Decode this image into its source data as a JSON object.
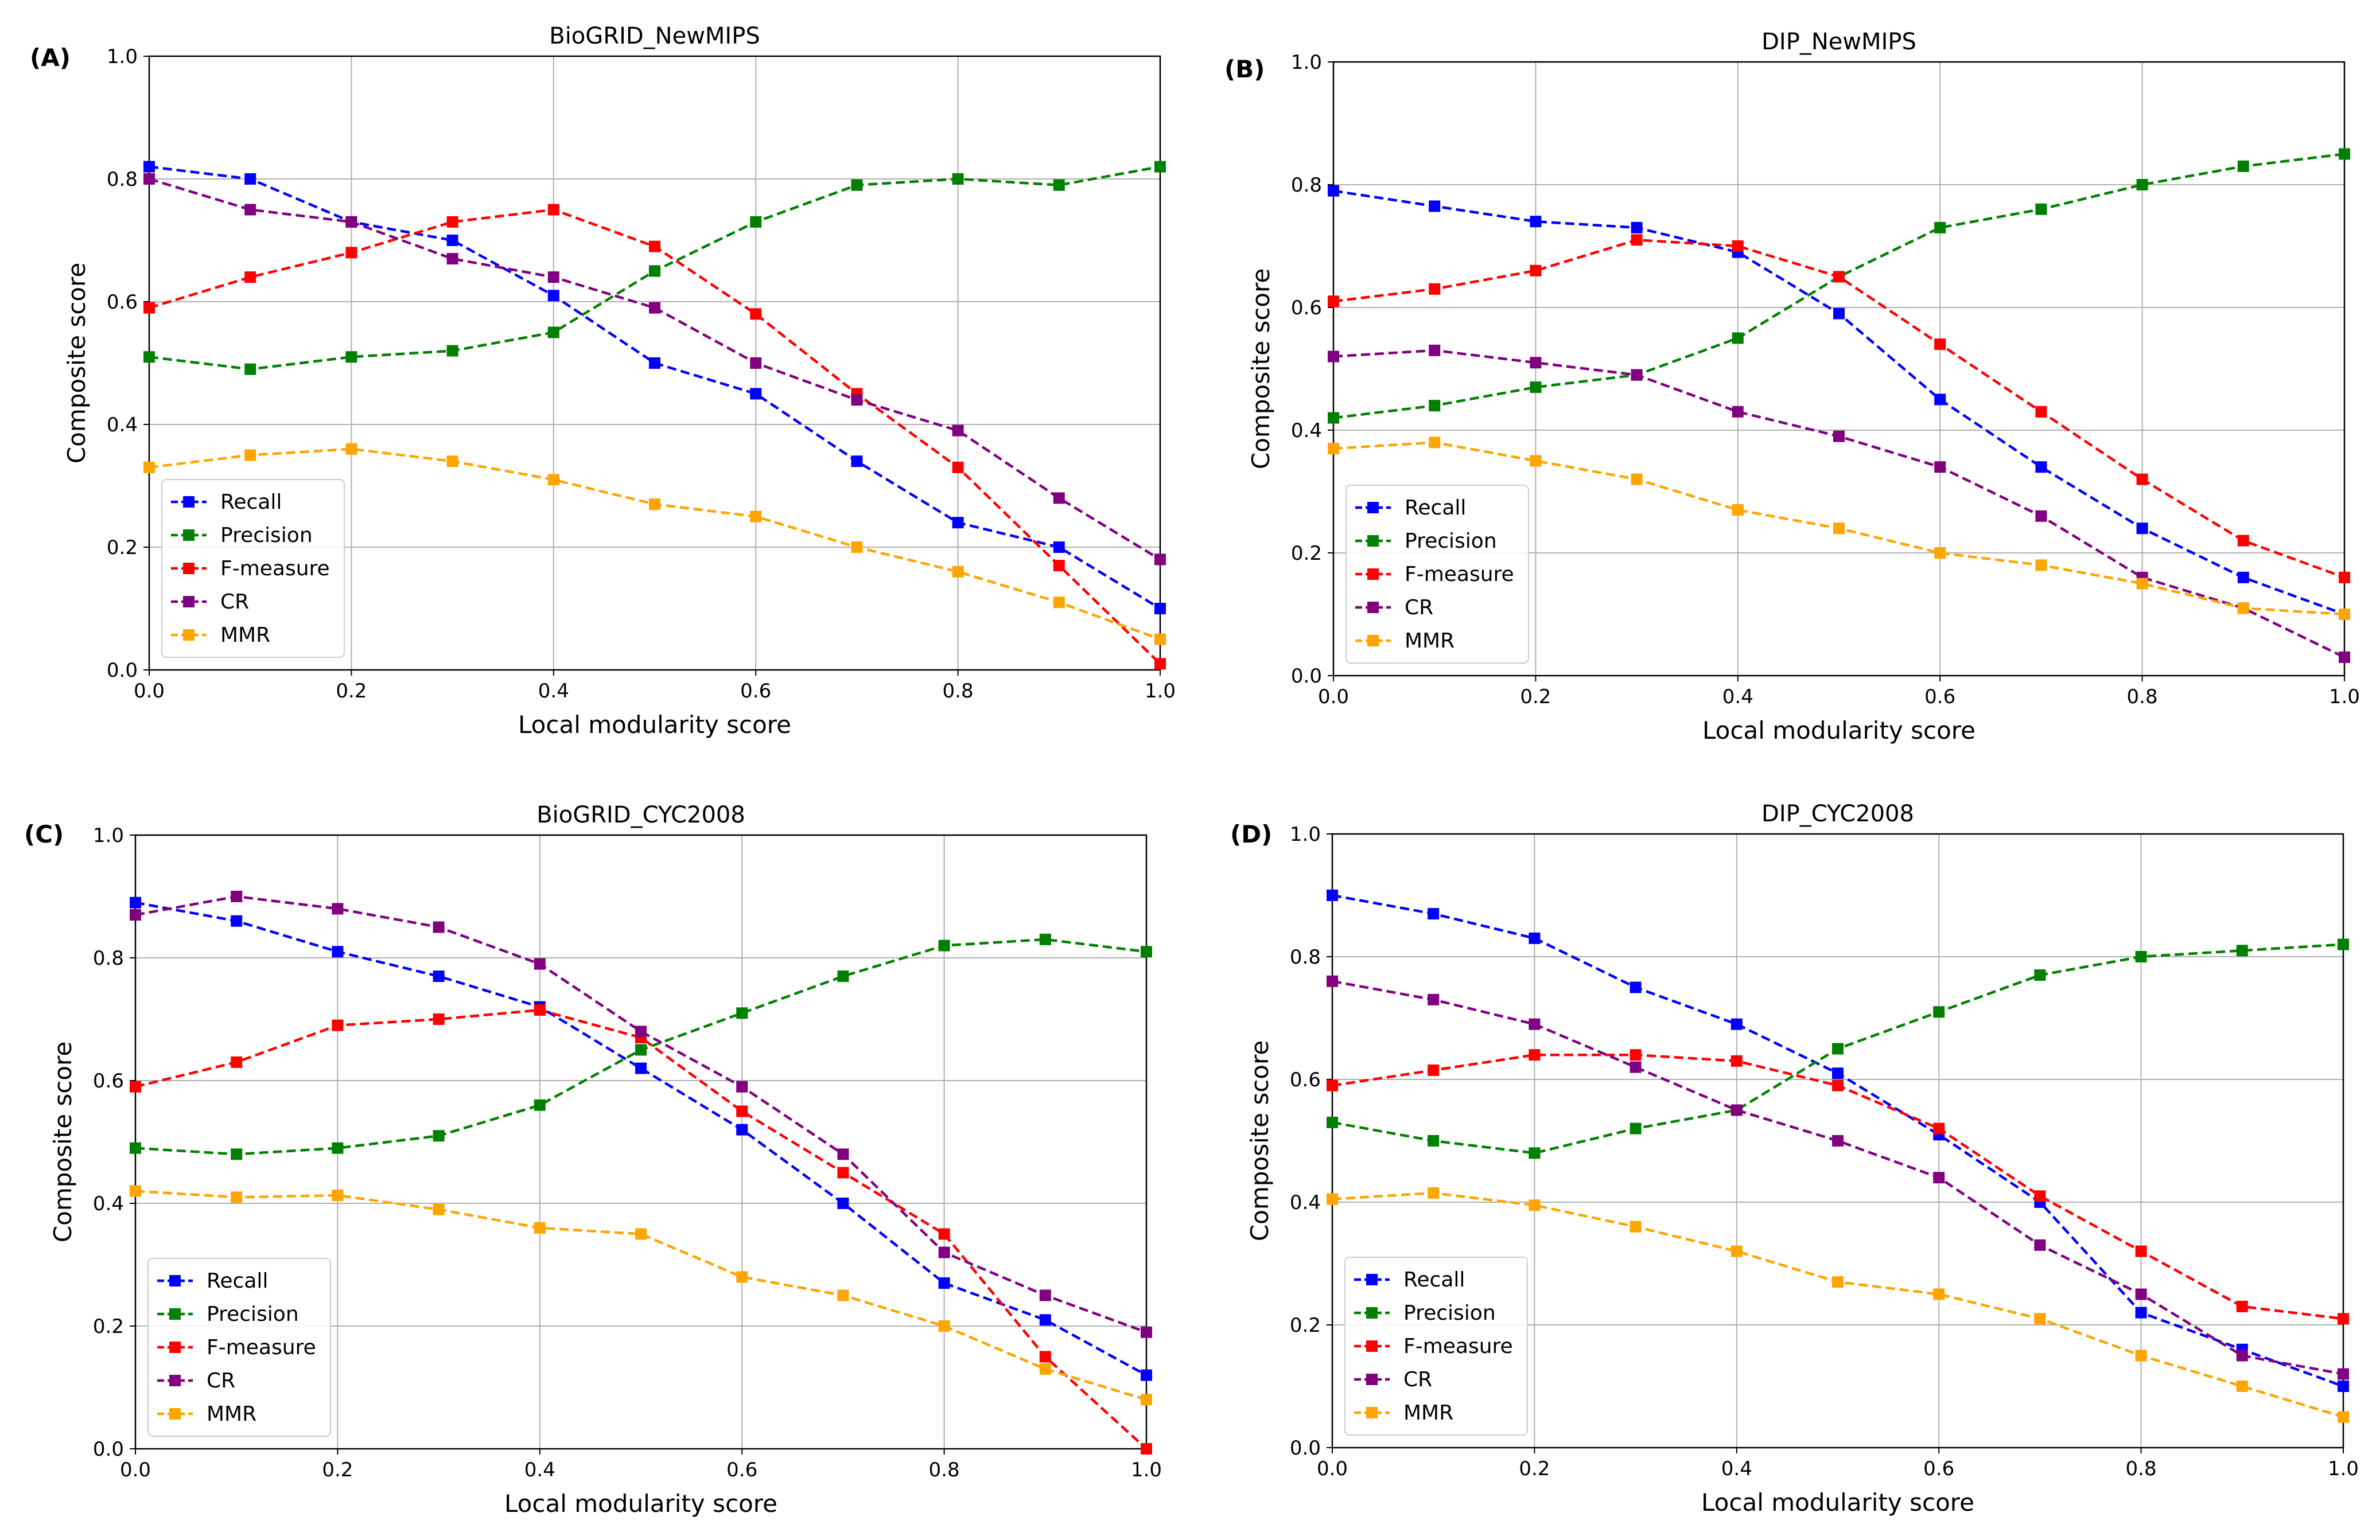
{
  "figure": {
    "panels": [
      "(A)",
      "(B)",
      "(C)",
      "(D)"
    ]
  },
  "colors": {
    "Recall": "#0000ff",
    "Precision": "#008000",
    "F-measure": "#ff0000",
    "CR": "#800080",
    "MMR": "#ffa500"
  },
  "chart_data": [
    {
      "type": "line",
      "title": "BioGRID_NewMIPS",
      "xlabel": "Local modularity score",
      "ylabel": "Composite score",
      "xlim": [
        0,
        1
      ],
      "ylim": [
        0,
        1
      ],
      "xticks": [
        "0.0",
        "0.2",
        "0.4",
        "0.6",
        "0.8",
        "1.0"
      ],
      "yticks": [
        "0.0",
        "0.2",
        "0.4",
        "0.6",
        "0.8",
        "1.0"
      ],
      "grid": true,
      "legend": "lower-left",
      "x": [
        0.0,
        0.1,
        0.2,
        0.3,
        0.4,
        0.5,
        0.6,
        0.7,
        0.8,
        0.9,
        1.0
      ],
      "series": [
        {
          "name": "Recall",
          "values": [
            0.82,
            0.8,
            0.73,
            0.7,
            0.61,
            0.5,
            0.45,
            0.34,
            0.24,
            0.2,
            0.1
          ]
        },
        {
          "name": "Precision",
          "values": [
            0.51,
            0.49,
            0.51,
            0.52,
            0.55,
            0.65,
            0.73,
            0.79,
            0.8,
            0.79,
            0.82
          ]
        },
        {
          "name": "F-measure",
          "values": [
            0.59,
            0.64,
            0.68,
            0.73,
            0.75,
            0.69,
            0.58,
            0.45,
            0.33,
            0.17,
            0.01
          ]
        },
        {
          "name": "CR",
          "values": [
            0.8,
            0.75,
            0.73,
            0.67,
            0.64,
            0.59,
            0.5,
            0.44,
            0.39,
            0.28,
            0.18
          ]
        },
        {
          "name": "MMR",
          "values": [
            0.33,
            0.35,
            0.36,
            0.34,
            0.31,
            0.27,
            0.25,
            0.2,
            0.16,
            0.11,
            0.05
          ]
        }
      ]
    },
    {
      "type": "line",
      "title": "DIP_NewMIPS",
      "xlabel": "Local modularity score",
      "ylabel": "Composite score",
      "xlim": [
        0,
        1
      ],
      "ylim": [
        0,
        1
      ],
      "xticks": [
        "0.0",
        "0.2",
        "0.4",
        "0.6",
        "0.8",
        "1.0"
      ],
      "yticks": [
        "0.0",
        "0.2",
        "0.4",
        "0.6",
        "0.8",
        "1.0"
      ],
      "grid": true,
      "legend": "lower-left",
      "x": [
        0.0,
        0.1,
        0.2,
        0.3,
        0.4,
        0.5,
        0.6,
        0.7,
        0.8,
        0.9,
        1.0
      ],
      "series": [
        {
          "name": "Recall",
          "values": [
            0.79,
            0.765,
            0.74,
            0.73,
            0.69,
            0.59,
            0.45,
            0.34,
            0.24,
            0.16,
            0.1
          ]
        },
        {
          "name": "Precision",
          "values": [
            0.42,
            0.44,
            0.47,
            0.49,
            0.55,
            0.65,
            0.73,
            0.76,
            0.8,
            0.83,
            0.85
          ]
        },
        {
          "name": "F-measure",
          "values": [
            0.61,
            0.63,
            0.66,
            0.71,
            0.7,
            0.65,
            0.54,
            0.43,
            0.32,
            0.22,
            0.16
          ]
        },
        {
          "name": "CR",
          "values": [
            0.52,
            0.53,
            0.51,
            0.49,
            0.43,
            0.39,
            0.34,
            0.26,
            0.16,
            0.11,
            0.03
          ]
        },
        {
          "name": "MMR",
          "values": [
            0.37,
            0.38,
            0.35,
            0.32,
            0.27,
            0.24,
            0.2,
            0.18,
            0.15,
            0.11,
            0.1
          ]
        }
      ]
    },
    {
      "type": "line",
      "title": "BioGRID_CYC2008",
      "xlabel": "Local modularity score",
      "ylabel": "Composite score",
      "xlim": [
        0,
        1
      ],
      "ylim": [
        0,
        1
      ],
      "xticks": [
        "0.0",
        "0.2",
        "0.4",
        "0.6",
        "0.8",
        "1.0"
      ],
      "yticks": [
        "0.0",
        "0.2",
        "0.4",
        "0.6",
        "0.8",
        "1.0"
      ],
      "grid": true,
      "legend": "lower-left",
      "x": [
        0.0,
        0.1,
        0.2,
        0.3,
        0.4,
        0.5,
        0.6,
        0.7,
        0.8,
        0.9,
        1.0
      ],
      "series": [
        {
          "name": "Recall",
          "values": [
            0.89,
            0.86,
            0.81,
            0.77,
            0.72,
            0.62,
            0.52,
            0.4,
            0.27,
            0.21,
            0.12
          ]
        },
        {
          "name": "Precision",
          "values": [
            0.49,
            0.48,
            0.49,
            0.51,
            0.56,
            0.65,
            0.71,
            0.77,
            0.82,
            0.83,
            0.81
          ]
        },
        {
          "name": "F-measure",
          "values": [
            0.59,
            0.63,
            0.69,
            0.7,
            0.715,
            0.67,
            0.55,
            0.45,
            0.35,
            0.15,
            0.0
          ]
        },
        {
          "name": "CR",
          "values": [
            0.87,
            0.9,
            0.88,
            0.85,
            0.79,
            0.68,
            0.59,
            0.48,
            0.32,
            0.25,
            0.19
          ]
        },
        {
          "name": "MMR",
          "values": [
            0.42,
            0.41,
            0.413,
            0.39,
            0.36,
            0.35,
            0.28,
            0.25,
            0.2,
            0.13,
            0.08
          ]
        }
      ]
    },
    {
      "type": "line",
      "title": "DIP_CYC2008",
      "xlabel": "Local modularity score",
      "ylabel": "Composite score",
      "xlim": [
        0,
        1
      ],
      "ylim": [
        0,
        1
      ],
      "xticks": [
        "0.0",
        "0.2",
        "0.4",
        "0.6",
        "0.8",
        "1.0"
      ],
      "yticks": [
        "0.0",
        "0.2",
        "0.4",
        "0.6",
        "0.8",
        "1.0"
      ],
      "grid": true,
      "legend": "lower-left",
      "x": [
        0.0,
        0.1,
        0.2,
        0.3,
        0.4,
        0.5,
        0.6,
        0.7,
        0.8,
        0.9,
        1.0
      ],
      "series": [
        {
          "name": "Recall",
          "values": [
            0.9,
            0.87,
            0.83,
            0.75,
            0.69,
            0.61,
            0.51,
            0.4,
            0.22,
            0.16,
            0.1
          ]
        },
        {
          "name": "Precision",
          "values": [
            0.53,
            0.5,
            0.48,
            0.52,
            0.55,
            0.65,
            0.71,
            0.77,
            0.8,
            0.81,
            0.82
          ]
        },
        {
          "name": "F-measure",
          "values": [
            0.59,
            0.615,
            0.64,
            0.64,
            0.63,
            0.59,
            0.52,
            0.41,
            0.32,
            0.23,
            0.21
          ]
        },
        {
          "name": "CR",
          "values": [
            0.76,
            0.73,
            0.69,
            0.62,
            0.55,
            0.5,
            0.44,
            0.33,
            0.25,
            0.15,
            0.12
          ]
        },
        {
          "name": "MMR",
          "values": [
            0.405,
            0.415,
            0.395,
            0.36,
            0.32,
            0.27,
            0.25,
            0.21,
            0.15,
            0.1,
            0.05
          ]
        }
      ]
    }
  ]
}
